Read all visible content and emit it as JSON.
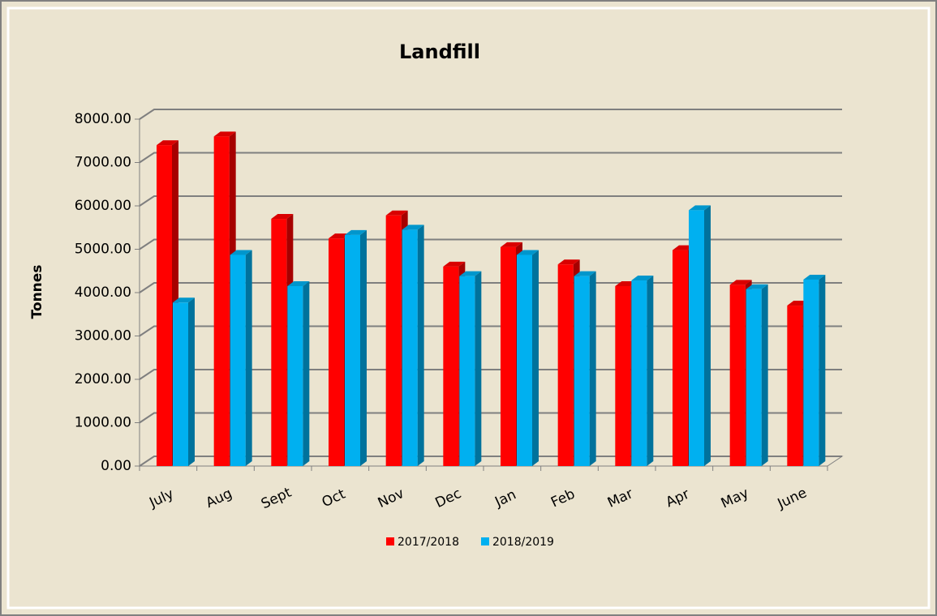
{
  "chart_data": {
    "type": "bar3d",
    "title": "Landfill",
    "ylabel": "Tonnes",
    "categories": [
      "July",
      "Aug",
      "Sept",
      "Oct",
      "Nov",
      "Dec",
      "Jan",
      "Feb",
      "Mar",
      "Apr",
      "May",
      "June"
    ],
    "series": [
      {
        "name": "2017/2018",
        "color": "#ff0000",
        "values": [
          7400,
          7600,
          5700,
          5250,
          5780,
          4600,
          5050,
          4650,
          4150,
          4980,
          4180,
          3700
        ]
      },
      {
        "name": "2018/2019",
        "color": "#00b0f0",
        "values": [
          3770,
          4870,
          4150,
          5330,
          5450,
          4380,
          4870,
          4380,
          4280,
          5900,
          4080,
          4300
        ]
      }
    ],
    "ylim": [
      0,
      8000
    ],
    "yticks": [
      {
        "value": 0,
        "label": "0.00"
      },
      {
        "value": 1000,
        "label": "1000.00"
      },
      {
        "value": 2000,
        "label": "2000.00"
      },
      {
        "value": 3000,
        "label": "3000.00"
      },
      {
        "value": 4000,
        "label": "4000.00"
      },
      {
        "value": 5000,
        "label": "5000.00"
      },
      {
        "value": 6000,
        "label": "6000.00"
      },
      {
        "value": 7000,
        "label": "7000.00"
      },
      {
        "value": 8000,
        "label": "8000.00"
      }
    ],
    "grid": true,
    "legend": "bottom"
  }
}
